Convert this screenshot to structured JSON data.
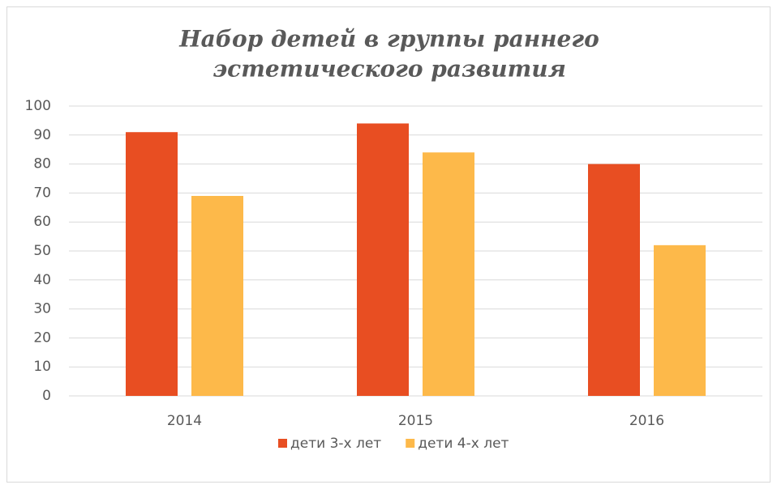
{
  "chart_data": {
    "type": "bar",
    "title": [
      "Набор детей в группы раннего",
      "эстетического развития"
    ],
    "categories": [
      "2014",
      "2015",
      "2016"
    ],
    "series": [
      {
        "name": "дети 3-х лет",
        "color": "#e84e22",
        "values": [
          91,
          94,
          80
        ]
      },
      {
        "name": "дети 4-х лет",
        "color": "#fdb94a",
        "values": [
          69,
          84,
          52
        ]
      }
    ],
    "ylim": [
      0,
      100
    ],
    "yticks": [
      0,
      10,
      20,
      30,
      40,
      50,
      60,
      70,
      80,
      90,
      100
    ],
    "grid": true,
    "legend": "bottom"
  }
}
